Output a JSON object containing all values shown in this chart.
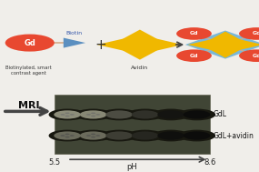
{
  "bg_color": "#f0eeea",
  "gd_color": "#e84830",
  "gd_text": "Gd",
  "biotin_label": "Biotin",
  "avidin_label": "Avidin",
  "contrast_agent_label": "Biotinylated, smart\ncontrast agent",
  "star_color": "#f0b800",
  "blue_diamond_color": "#7ab8d8",
  "mri_label": "MRI",
  "gdl_label": "GdL",
  "gdl_avidin_label": "GdL+avidin",
  "ph_label": "pH",
  "ph_start": "5.5",
  "ph_end": "8.6",
  "biotin_arrow_color": "#5b8fc0",
  "link_color": "#d4aa88",
  "arrow_color": "#444444",
  "mri_bg": "#404535",
  "mri_ring_outer": "#181810",
  "mri_ring_mid": "#282820"
}
